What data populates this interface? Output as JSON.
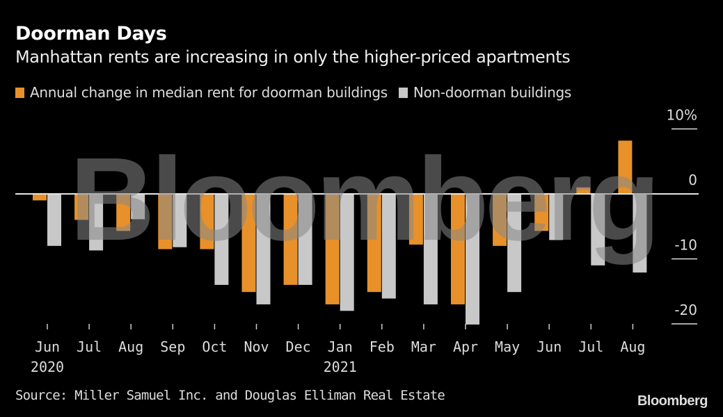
{
  "header": {
    "title": "Doorman Days",
    "subtitle": "Manhattan rents are increasing in only the higher-priced apartments"
  },
  "colors": {
    "doorman": "#e8912a",
    "non_doorman": "#c8c8c8",
    "background": "#000000"
  },
  "watermark": "Bloomberg",
  "footer": {
    "source": "Source: Miller Samuel Inc. and Douglas Elliman Real Estate",
    "brand": "Bloomberg"
  },
  "chart_data": {
    "type": "bar",
    "title": "Doorman Days",
    "subtitle": "Manhattan rents are increasing in only the higher-priced apartments",
    "xlabel": "",
    "ylabel": "",
    "categories": [
      "Jun",
      "Jul",
      "Aug",
      "Sep",
      "Oct",
      "Nov",
      "Dec",
      "Jan",
      "Feb",
      "Mar",
      "Apr",
      "May",
      "Jun",
      "Jul",
      "Aug"
    ],
    "year_labels": [
      {
        "index": 0,
        "label": "2020"
      },
      {
        "index": 7,
        "label": "2021"
      }
    ],
    "series": [
      {
        "name": "Annual change in median rent for doorman buildings",
        "color": "#e8912a",
        "values": [
          -1.0,
          -4.0,
          -5.7,
          -8.5,
          -8.5,
          -15.1,
          -14.0,
          -17.0,
          -15.1,
          -7.8,
          -17.0,
          -8.0,
          -5.7,
          1.0,
          8.2
        ]
      },
      {
        "name": "Non-doorman buildings",
        "color": "#c8c8c8",
        "values": [
          -8.0,
          -8.7,
          -3.9,
          -8.2,
          -14.0,
          -17.0,
          -14.0,
          -18.0,
          -16.1,
          -17.0,
          -20.1,
          -15.1,
          -7.1,
          -11.0,
          -12.1
        ]
      }
    ],
    "yticks": [
      10,
      0,
      -10,
      -20
    ],
    "ytick_labels": [
      "10%",
      "0",
      "-10",
      "-20"
    ],
    "ylim": [
      -22,
      12
    ],
    "legend": "top-left",
    "grid": false,
    "y_axis_position": "right"
  }
}
